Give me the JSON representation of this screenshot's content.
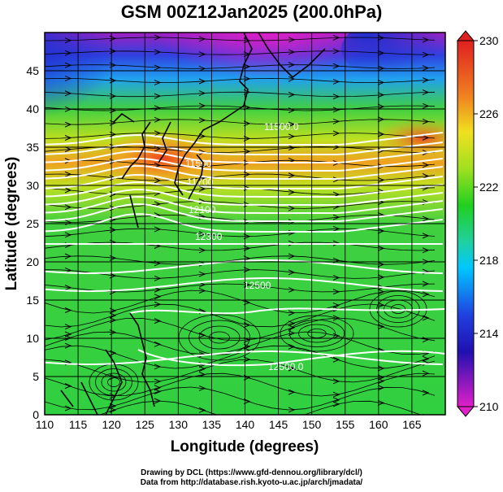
{
  "title": "GSM 00Z12Jan2025 (200.0hPa)",
  "axes": {
    "xlabel": "Longitude (degrees)",
    "ylabel": "Latitude  (degrees)",
    "xlim": [
      110,
      170
    ],
    "ylim": [
      0,
      50
    ],
    "xticks": [
      110,
      115,
      120,
      125,
      130,
      135,
      140,
      145,
      150,
      155,
      160,
      165
    ],
    "yticks": [
      0,
      5,
      10,
      15,
      20,
      25,
      30,
      35,
      40,
      45
    ]
  },
  "colorbar": {
    "min": 210,
    "max": 230,
    "labels": [
      230,
      226,
      222,
      218,
      214,
      210
    ],
    "colors": {
      "low": "#e020c8",
      "mid_low": "#1a20d0",
      "cyan": "#00c8ff",
      "green": "#20d020",
      "yellow": "#f0e020",
      "orange": "#f08020",
      "high": "#e02020"
    }
  },
  "contour_labels": [
    "11500.0",
    "11500",
    "11700",
    "12100",
    "12300",
    "12500",
    "12500.0"
  ],
  "credits": {
    "line1": "Drawing by DCL (https://www.gfd-dennou.org/library/dcl/)",
    "line2": "Data from http://database.rish.kyoto-u.ac.jp/arch/jmadata/"
  }
}
